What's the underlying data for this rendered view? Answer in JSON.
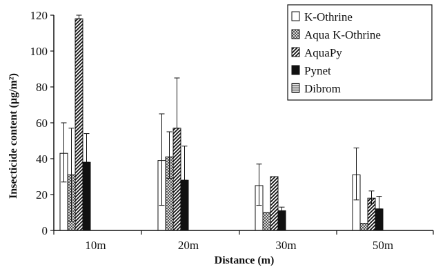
{
  "chart_data": {
    "type": "bar",
    "xlabel": "Distance (m)",
    "ylabel": "Insecticide content (µg/m²)",
    "ylim": [
      0,
      120
    ],
    "yticks": [
      0,
      20,
      40,
      60,
      80,
      100,
      120
    ],
    "categories": [
      "10m",
      "20m",
      "30m",
      "50m"
    ],
    "legend_position": "top-right",
    "grid": false,
    "series": [
      {
        "name": "K-Othrine",
        "pattern": "white",
        "values": [
          43,
          39,
          25,
          31
        ],
        "error_low": [
          27,
          14,
          14,
          17
        ],
        "error_high": [
          60,
          65,
          37,
          46
        ]
      },
      {
        "name": "Aqua K-Othrine",
        "pattern": "crosshatch",
        "values": [
          31,
          41,
          10,
          4
        ],
        "error_low": [
          5,
          29,
          10,
          4
        ],
        "error_high": [
          57,
          55,
          10,
          4
        ]
      },
      {
        "name": "AquaPy",
        "pattern": "diagonal",
        "values": [
          118,
          57,
          30,
          18
        ],
        "error_low": [
          118,
          57,
          30,
          15
        ],
        "error_high": [
          120,
          85,
          30,
          22
        ]
      },
      {
        "name": "Pynet",
        "pattern": "black",
        "values": [
          38,
          28,
          11,
          12
        ],
        "error_low": [
          38,
          28,
          9,
          12
        ],
        "error_high": [
          54,
          47,
          13,
          19
        ]
      },
      {
        "name": "Dibrom",
        "pattern": "horizontal",
        "values": [
          0,
          0,
          0,
          0
        ],
        "error_low": [
          0,
          0,
          0,
          0
        ],
        "error_high": [
          0,
          0,
          0,
          0
        ]
      }
    ]
  }
}
